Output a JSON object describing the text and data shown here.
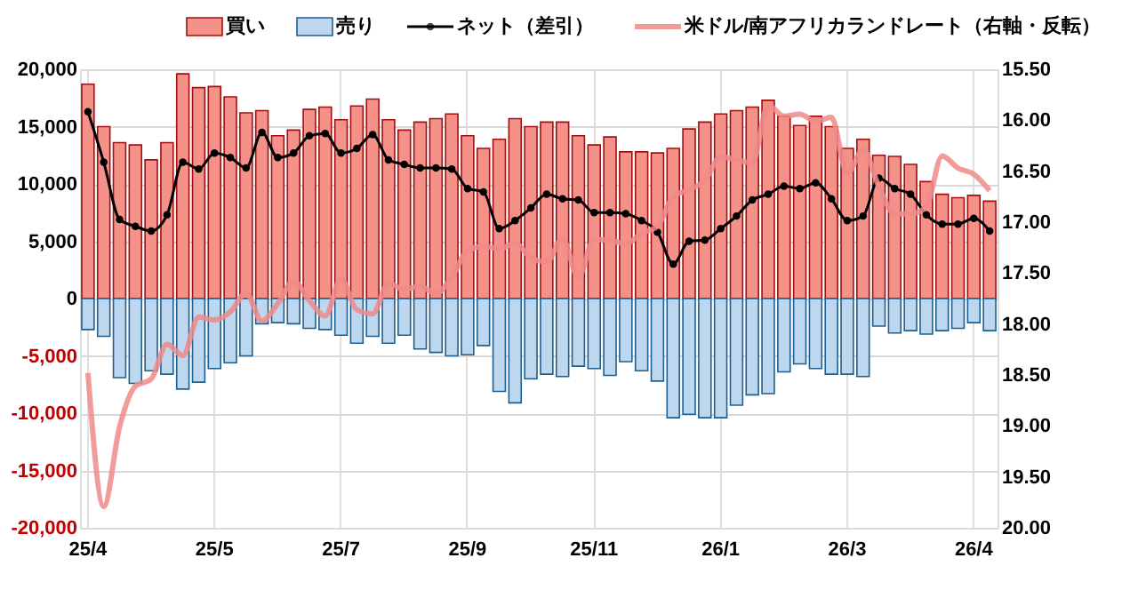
{
  "chart_data": {
    "type": "bar",
    "categories": [
      "25/4",
      null,
      null,
      null,
      null,
      null,
      null,
      null,
      "25/5",
      null,
      null,
      null,
      null,
      null,
      null,
      null,
      "25/7",
      null,
      null,
      null,
      null,
      null,
      null,
      null,
      "25/9",
      null,
      null,
      null,
      null,
      null,
      null,
      null,
      "25/11",
      null,
      null,
      null,
      null,
      null,
      null,
      null,
      "26/1",
      null,
      null,
      null,
      null,
      null,
      null,
      null,
      "26/3",
      null,
      null,
      null,
      null,
      null,
      null,
      null,
      "26/4",
      null
    ],
    "series": [
      {
        "name": "買い",
        "color": "#f4928a",
        "values": [
          18700,
          15000,
          13600,
          13400,
          12100,
          13600,
          19600,
          18400,
          18500,
          17600,
          16200,
          16400,
          14200,
          14700,
          16500,
          16700,
          15600,
          16800,
          17400,
          15600,
          14700,
          15400,
          15700,
          16100,
          14200,
          13100,
          13900,
          15700,
          15000,
          15400,
          15400,
          14200,
          13400,
          14100,
          12800,
          12800,
          12700,
          13100,
          14800,
          15400,
          16100,
          16400,
          16700,
          17300,
          15900,
          15100,
          15900,
          15000,
          13100,
          13900,
          12500,
          12400,
          11700,
          10200,
          9100,
          8800,
          9000,
          8500
        ]
      },
      {
        "name": "売り",
        "color": "#bdd7ee",
        "values": [
          -2700,
          -3300,
          -6900,
          -7400,
          -6300,
          -6600,
          -7900,
          -7300,
          -6100,
          -5600,
          -5000,
          -2200,
          -2100,
          -2200,
          -2600,
          -2700,
          -3200,
          -3900,
          -3300,
          -3900,
          -3200,
          -4400,
          -4700,
          -5000,
          -4900,
          -4100,
          -8100,
          -9100,
          -7000,
          -6600,
          -6800,
          -5900,
          -6100,
          -6700,
          -5500,
          -6300,
          -7200,
          -10400,
          -10100,
          -10400,
          -10400,
          -9300,
          -8400,
          -8300,
          -6400,
          -5700,
          -6100,
          -6600,
          -6600,
          -6800,
          -2400,
          -3000,
          -2800,
          -3100,
          -2800,
          -2600,
          -2100,
          -2800
        ]
      },
      {
        "name": "ネット（差引）",
        "type": "line",
        "color": "#000000",
        "marker": "circle",
        "values": [
          16300,
          11900,
          6900,
          6300,
          5900,
          7300,
          11900,
          11300,
          12700,
          12300,
          11400,
          14500,
          12300,
          12700,
          14200,
          14400,
          12700,
          13100,
          14300,
          12100,
          11700,
          11400,
          11400,
          11300,
          9600,
          9300,
          6100,
          6800,
          7900,
          9100,
          8700,
          8600,
          7500,
          7500,
          7400,
          6800,
          5800,
          3000,
          5000,
          5100,
          6100,
          7200,
          8600,
          9100,
          9800,
          9600,
          10100,
          8700,
          6800,
          7200,
          10500,
          9600,
          9100,
          7300,
          6500,
          6500,
          7000,
          5900
        ]
      },
      {
        "name": "米ドル/南アフリカランドレート（右軸・反転）",
        "type": "line",
        "color": "#f08a8a",
        "axis": "y2",
        "marker": "none",
        "values": [
          18.48,
          19.79,
          19.01,
          18.61,
          18.54,
          18.2,
          18.31,
          17.93,
          17.96,
          17.88,
          17.7,
          17.97,
          17.8,
          17.58,
          17.77,
          17.92,
          17.56,
          17.86,
          17.9,
          17.6,
          17.66,
          17.63,
          17.7,
          17.54,
          17.28,
          17.24,
          17.26,
          17.21,
          17.35,
          17.39,
          17.16,
          17.54,
          17.17,
          17.18,
          17.21,
          17.11,
          17.04,
          16.75,
          16.68,
          16.59,
          16.36,
          16.39,
          16.42,
          15.85,
          15.96,
          15.94,
          16.01,
          15.97,
          16.52,
          16.29,
          16.65,
          16.92,
          16.92,
          16.85,
          16.35,
          16.47,
          16.53,
          16.69
        ]
      }
    ],
    "ylim": [
      -20000,
      20000
    ],
    "yticks": [
      {
        "value": -20000,
        "label": "-20,000"
      },
      {
        "value": -15000,
        "label": "-15,000"
      },
      {
        "value": -10000,
        "label": "-10,000"
      },
      {
        "value": -5000,
        "label": "-5,000"
      },
      0,
      {
        "value": 5000,
        "label": "5,000"
      },
      {
        "value": 10000,
        "label": "10,000"
      },
      {
        "value": 15000,
        "label": "15,000"
      },
      {
        "value": 20000,
        "label": "20,000"
      }
    ],
    "y2lim": [
      20.0,
      15.5
    ],
    "y2ticks": [
      {
        "value": 20.0,
        "label": "20.00"
      },
      {
        "value": 19.5,
        "label": "19.50"
      },
      {
        "value": 19.0,
        "label": "19.00"
      },
      {
        "value": 18.5,
        "label": "18.50"
      },
      {
        "value": 18.0,
        "label": "18.00"
      },
      {
        "value": 17.5,
        "label": "17.50"
      },
      {
        "value": 17.0,
        "label": "17.00"
      },
      {
        "value": 16.5,
        "label": "16.50"
      },
      {
        "value": 16.0,
        "label": "16.00"
      },
      {
        "value": 15.5,
        "label": "15.50"
      }
    ],
    "grid": true,
    "stacked": true,
    "legend": "top"
  }
}
